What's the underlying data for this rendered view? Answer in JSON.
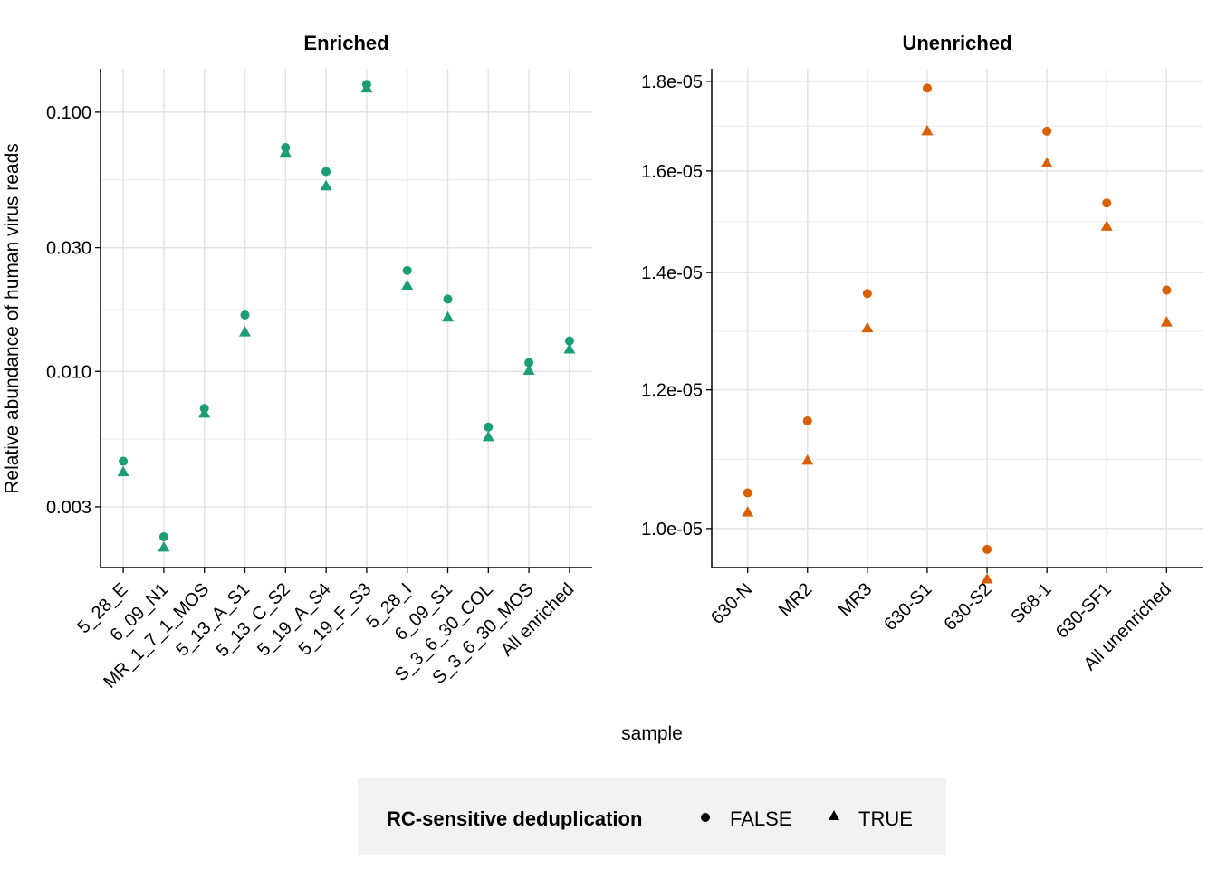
{
  "chart_data": {
    "type": "scatter",
    "xlabel": "sample",
    "ylabel": "Relative abundance of human virus reads",
    "legend": {
      "title": "RC-sensitive deduplication",
      "placement": "bottom",
      "entries": [
        {
          "label": "FALSE",
          "shape": "circle"
        },
        {
          "label": "TRUE",
          "shape": "triangle"
        }
      ]
    },
    "panels": [
      {
        "title": "Enriched",
        "color": "#1B9E77",
        "yscale": "log",
        "ylim": [
          0.00175,
          0.147
        ],
        "yticks": [
          0.003,
          0.01,
          0.03,
          0.1
        ],
        "ytick_labels": [
          "0.003",
          "0.010",
          "0.030",
          "0.100"
        ],
        "categories": [
          "5_28_E",
          "6_09_N1",
          "MR_1_7_1_MOS",
          "5_13_A_S1",
          "5_13_C_S2",
          "5_19_A_S4",
          "5_19_F_S3",
          "5_28_I",
          "6_09_S1",
          "S_3_6_30_COL",
          "S_3_6_30_MOS",
          "All enriched"
        ],
        "series": [
          {
            "name": "FALSE",
            "values": [
              0.0045,
              0.0023,
              0.0072,
              0.0165,
              0.073,
              0.059,
              0.128,
              0.0245,
              0.019,
              0.0061,
              0.0108,
              0.0131
            ]
          },
          {
            "name": "TRUE",
            "values": [
              0.0041,
              0.0021,
              0.0069,
              0.0142,
              0.07,
              0.052,
              0.124,
              0.0215,
              0.0162,
              0.0056,
              0.0101,
              0.0122
            ]
          }
        ]
      },
      {
        "title": "Unenriched",
        "color": "#D95F02",
        "yscale": "log",
        "ylim": [
          9.5e-06,
          1.83e-05
        ],
        "yticks": [
          1e-05,
          1.2e-05,
          1.4e-05,
          1.6e-05,
          1.8e-05
        ],
        "ytick_labels": [
          "1.0e-05",
          "1.2e-05",
          "1.4e-05",
          "1.6e-05",
          "1.8e-05"
        ],
        "categories": [
          "630-N",
          "MR2",
          "MR3",
          "630-S1",
          "630-S2",
          "S68-1",
          "630-SF1",
          "All unenriched"
        ],
        "series": [
          {
            "name": "FALSE",
            "values": [
              1.048e-05,
              1.152e-05,
              1.362e-05,
              1.784e-05,
              9.73e-06,
              1.686e-05,
              1.534e-05,
              1.368e-05
            ]
          },
          {
            "name": "TRUE",
            "values": [
              1.022e-05,
              1.094e-05,
              1.302e-05,
              1.687e-05,
              9.36e-06,
              1.617e-05,
              1.488e-05,
              1.312e-05
            ]
          }
        ]
      }
    ]
  }
}
